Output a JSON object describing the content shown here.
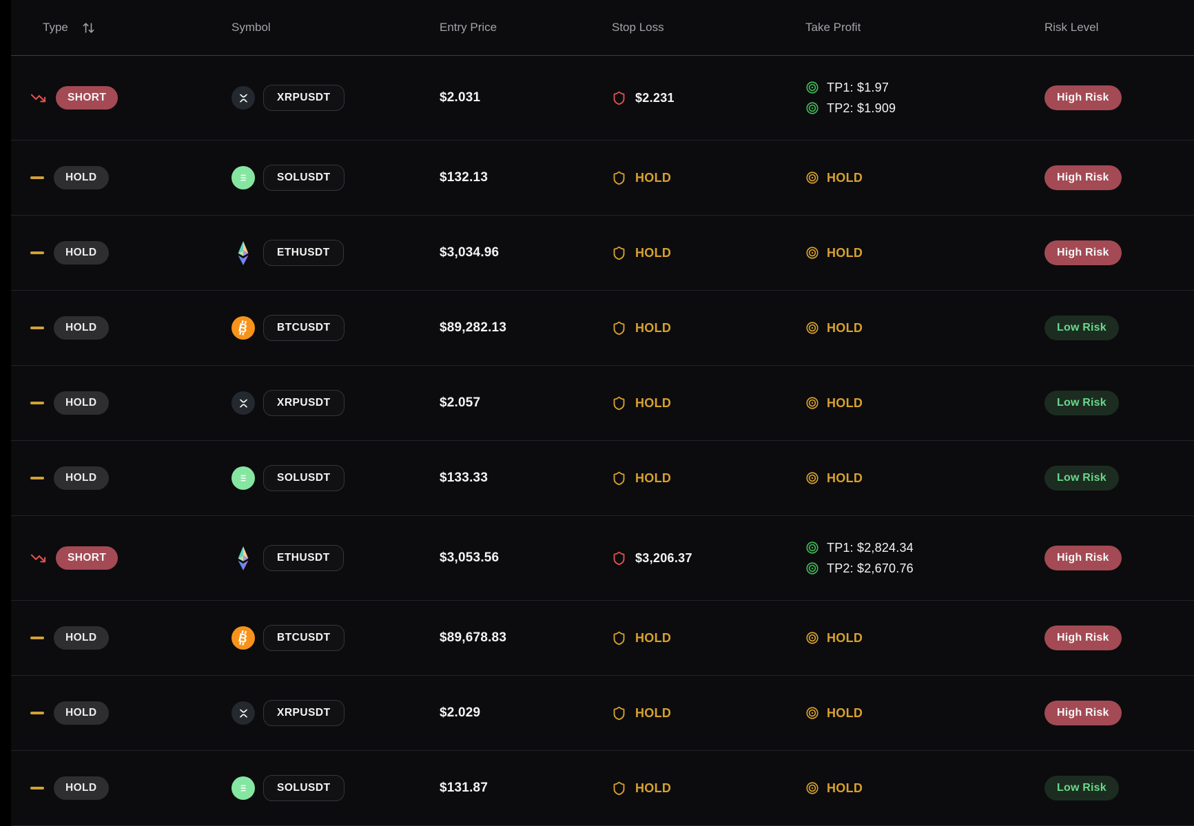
{
  "table": {
    "columns": [
      {
        "key": "type",
        "label": "Type",
        "sortable": true
      },
      {
        "key": "symbol",
        "label": "Symbol"
      },
      {
        "key": "entry",
        "label": "Entry Price"
      },
      {
        "key": "stop",
        "label": "Stop Loss"
      },
      {
        "key": "tp",
        "label": "Take Profit"
      },
      {
        "key": "risk",
        "label": "Risk Level"
      }
    ],
    "rows": [
      {
        "type": "SHORT",
        "coin": "xrp",
        "symbol": "XRPUSDT",
        "entry": "$2.031",
        "stop_loss": "$2.231",
        "take_profits": [
          "TP1: $1.97",
          "TP2: $1.909"
        ],
        "risk": "High Risk"
      },
      {
        "type": "HOLD",
        "coin": "sol",
        "symbol": "SOLUSDT",
        "entry": "$132.13",
        "stop_loss": "HOLD",
        "take_profits": "HOLD",
        "risk": "High Risk"
      },
      {
        "type": "HOLD",
        "coin": "eth",
        "symbol": "ETHUSDT",
        "entry": "$3,034.96",
        "stop_loss": "HOLD",
        "take_profits": "HOLD",
        "risk": "High Risk"
      },
      {
        "type": "HOLD",
        "coin": "btc",
        "symbol": "BTCUSDT",
        "entry": "$89,282.13",
        "stop_loss": "HOLD",
        "take_profits": "HOLD",
        "risk": "Low Risk"
      },
      {
        "type": "HOLD",
        "coin": "xrp",
        "symbol": "XRPUSDT",
        "entry": "$2.057",
        "stop_loss": "HOLD",
        "take_profits": "HOLD",
        "risk": "Low Risk"
      },
      {
        "type": "HOLD",
        "coin": "sol",
        "symbol": "SOLUSDT",
        "entry": "$133.33",
        "stop_loss": "HOLD",
        "take_profits": "HOLD",
        "risk": "Low Risk"
      },
      {
        "type": "SHORT",
        "coin": "eth",
        "symbol": "ETHUSDT",
        "entry": "$3,053.56",
        "stop_loss": "$3,206.37",
        "take_profits": [
          "TP1: $2,824.34",
          "TP2: $2,670.76"
        ],
        "risk": "High Risk"
      },
      {
        "type": "HOLD",
        "coin": "btc",
        "symbol": "BTCUSDT",
        "entry": "$89,678.83",
        "stop_loss": "HOLD",
        "take_profits": "HOLD",
        "risk": "High Risk"
      },
      {
        "type": "HOLD",
        "coin": "xrp",
        "symbol": "XRPUSDT",
        "entry": "$2.029",
        "stop_loss": "HOLD",
        "take_profits": "HOLD",
        "risk": "High Risk"
      },
      {
        "type": "HOLD",
        "coin": "sol",
        "symbol": "SOLUSDT",
        "entry": "$131.87",
        "stop_loss": "HOLD",
        "take_profits": "HOLD",
        "risk": "Low Risk"
      }
    ]
  },
  "colors": {
    "page_margin": "#000000",
    "table_background": "#0c0c0e",
    "row_divider": "#232328",
    "header_divider": "#3c3c42",
    "header_text": "#a3a3a8",
    "primary_text": "#f4f4f5",
    "short_badge_bg": "#a44a54",
    "hold_badge_bg": "#2e2e31",
    "amber_hold": "#d8a12e",
    "red_alert": "#e0524f",
    "tp_green": "#3fbb57",
    "risk_high_bg": "#a44a54",
    "risk_low_bg": "#1c2c21",
    "risk_low_text": "#69d98a",
    "btc_icon_bg": "#f7931a",
    "sol_icon_bg": "#85e6a2",
    "xrp_icon_bg": "#23292f"
  }
}
